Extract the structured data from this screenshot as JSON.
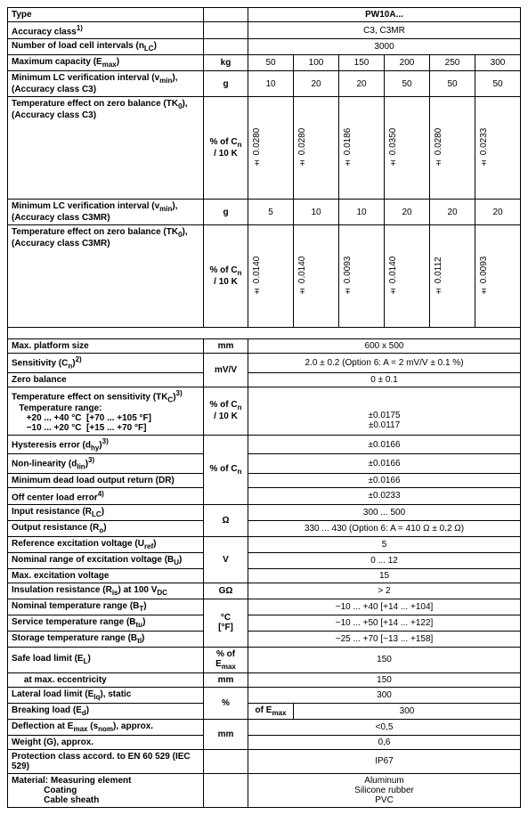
{
  "header": {
    "type_lbl": "Type",
    "type_val": "PW10A...",
    "accuracy_lbl": "Accuracy class",
    "accuracy_sup": "1)",
    "accuracy_val": "C3, C3MR",
    "intervals_lbl": "Number of load cell intervals (n",
    "intervals_sub": "LC",
    "intervals_lbl2": ")",
    "intervals_val": "3000"
  },
  "capacity": {
    "lbl": "Maximum capacity (E",
    "sub": "max",
    "lbl2": ")",
    "unit": "kg",
    "v": [
      "50",
      "100",
      "150",
      "200",
      "250",
      "300"
    ]
  },
  "vmin_c3": {
    "lbl": "Minimum LC verification interval (v",
    "sub": "min",
    "lbl2": "), (Accuracy class C3)",
    "unit": "g",
    "v": [
      "10",
      "20",
      "20",
      "50",
      "50",
      "50"
    ]
  },
  "tk0_c3": {
    "lbl": "Temperature effect on zero balance (TK",
    "sub": "0",
    "lbl2": "), (Accuracy class C3)",
    "unit_pre": "% of C",
    "unit_sub": "n",
    "unit_post": " / 10 K",
    "v": [
      "± 0.0280",
      "± 0.0280",
      "± 0.0186",
      "± 0.0350",
      "± 0.0280",
      "± 0.0233"
    ]
  },
  "vmin_c3mr": {
    "lbl": "Minimum LC verification interval (v",
    "sub": "min",
    "lbl2": "), (Accuracy class C3MR)",
    "unit": "g",
    "v": [
      "5",
      "10",
      "10",
      "20",
      "20",
      "20"
    ]
  },
  "tk0_c3mr": {
    "lbl": "Temperature effect on zero balance (TK",
    "sub": "0",
    "lbl2": "), (Accuracy class C3MR)",
    "unit_pre": "% of C",
    "unit_sub": "n",
    "unit_post": " / 10 K",
    "v": [
      "± 0.0140",
      "± 0.0140",
      "± 0.0093",
      "± 0.0140",
      "± 0.0112",
      "± 0.0093"
    ]
  },
  "rows": [
    {
      "lbl": "Max. platform size",
      "unit": "mm",
      "val": "600 x 500"
    },
    {
      "lbl_html": "Sensitivity (C<sub>n</sub>)<sup>2)</sup>",
      "unit_rs": "mV/V",
      "val": "2.0 ± 0.2 (Option 6: A = 2 mV/V ± 0.1 %)"
    },
    {
      "lbl": "Zero balance",
      "unit_skip": true,
      "val": "0 ± 0.1"
    },
    {
      "lbl_html": "Temperature effect on sensitivity (TK<sub>C</sub>)<sup>3)</sup><br>&nbsp;&nbsp;&nbsp;Temperature range:<br>&nbsp;&nbsp;&nbsp;&nbsp;&nbsp;&nbsp;+20 ... +40 °C &nbsp;[+70 ... +105 °F]<br>&nbsp;&nbsp;&nbsp;&nbsp;&nbsp;&nbsp;−10 ... +20 °C &nbsp;[+15 ... +70 °F]",
      "unit_html": "% of C<sub>n</sub><br>/ 10 K",
      "val_html": "<br><br>±0.0175<br>±0.0117"
    },
    {
      "lbl_html": "Hysteresis error (d<sub>hy</sub>)<sup>3)</sup>",
      "unit_rs_html": "% of C<sub>n</sub>",
      "unit_rows": 4,
      "val": "±0.0166"
    },
    {
      "lbl_html": "Non-linearity (d<sub>lin</sub>)<sup>3)</sup>",
      "unit_skip": true,
      "val": "±0.0166"
    },
    {
      "lbl": "Minimum dead load output return (DR)",
      "unit_skip": true,
      "val": "±0.0166"
    },
    {
      "lbl_html": "Off center load error<sup>4)</sup>",
      "unit_skip": true,
      "val": "±0.0233"
    },
    {
      "lbl_html": "Input resistance (R<sub>LC</sub>)",
      "unit_rs": "Ω",
      "val": "300 ... 500"
    },
    {
      "lbl_html": "Output resistance (R<sub>o</sub>)",
      "unit_skip": true,
      "val": "330 ... 430 (Option 6: A = 410 Ω ± 0.2 Ω)"
    },
    {
      "lbl_html": "Reference excitation voltage (U<sub>ref</sub>)",
      "unit_rs": "V",
      "unit_rows": 3,
      "val": "5"
    },
    {
      "lbl_html": "Nominal range of excitation voltage (B<sub>U</sub>)",
      "unit_skip": true,
      "val": "0 ... 12"
    },
    {
      "lbl": "Max. excitation voltage",
      "unit_skip": true,
      "val": "15"
    },
    {
      "lbl_html": "Insulation resistance (R<sub>is</sub>) at 100 V<sub>DC</sub>",
      "unit": "GΩ",
      "val": "> 2"
    },
    {
      "lbl_html": "Nominal temperature range (B<sub>T</sub>)",
      "unit_rs_html": "°C<br>[°F]",
      "unit_rows": 3,
      "val": "−10 ... +40 [+14 ... +104]"
    },
    {
      "lbl_html": "Service temperature range (B<sub>tu</sub>)",
      "unit_skip": true,
      "val": "−10 ... +50 [+14 ... +122]"
    },
    {
      "lbl_html": "Storage temperature range (B<sub>tl</sub>)",
      "unit_skip": true,
      "val": "−25 ... +70 [−13 ... +158]"
    },
    {
      "lbl_html": "Safe load limit (E<sub>L</sub>)",
      "unit_html": "% of<br>E<sub>max</sub>",
      "val": "150"
    },
    {
      "lbl_html": "&nbsp;&nbsp;&nbsp;&nbsp;&nbsp;at max. eccentricity",
      "unit": "mm",
      "val": "150"
    },
    {
      "lbl_html": "Lateral load limit (E<sub>lq</sub>), static",
      "unit_rs": "%",
      "val": "300"
    },
    {
      "lbl_html": "Breaking load (E<sub>d</sub>)",
      "unit_html": "of E<sub>max</sub>",
      "val": "300"
    },
    {
      "lbl_html": "Deflection at E<sub>max</sub> (s<sub>nom</sub>), approx.",
      "unit_rs": "mm",
      "val": "<0,5"
    },
    {
      "lbl": "Weight (G), approx.",
      "unit_skip": true,
      "val": "0,6"
    },
    {
      "lbl": "Protection class accord. to EN 60 529 (IEC 529)",
      "unit": "",
      "val": "IP67"
    },
    {
      "lbl_html": "Material:&nbsp;Measuring element<br>&nbsp;&nbsp;&nbsp;&nbsp;&nbsp;&nbsp;&nbsp;&nbsp;&nbsp;&nbsp;&nbsp;&nbsp;&nbsp;Coating<br>&nbsp;&nbsp;&nbsp;&nbsp;&nbsp;&nbsp;&nbsp;&nbsp;&nbsp;&nbsp;&nbsp;&nbsp;&nbsp;Cable sheath",
      "unit": "",
      "val_html": "Aluminum<br>Silicone rubber<br>PVC"
    }
  ]
}
